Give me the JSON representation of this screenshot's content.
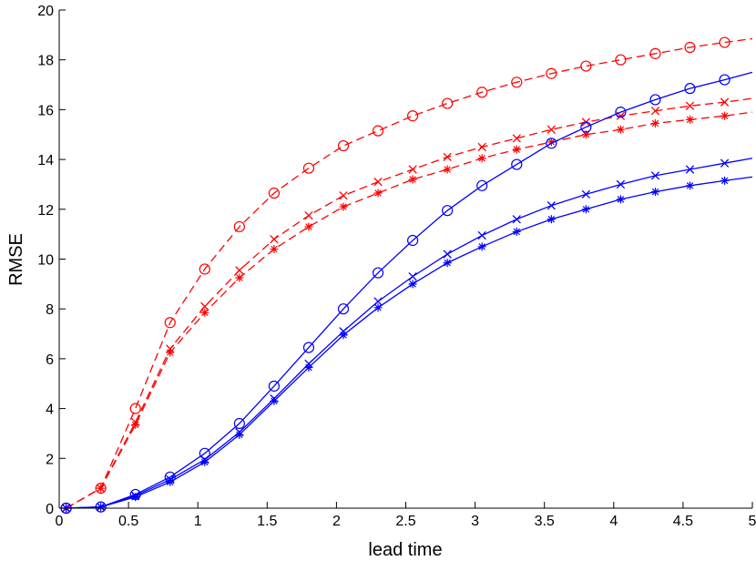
{
  "chart_data": {
    "type": "line",
    "xlabel": "lead time",
    "ylabel": "RMSE",
    "xlim": [
      0,
      5
    ],
    "ylim": [
      0,
      20
    ],
    "xticks": [
      0,
      0.5,
      1,
      1.5,
      2,
      2.5,
      3,
      3.5,
      4,
      4.5,
      5
    ],
    "yticks": [
      0,
      2,
      4,
      6,
      8,
      10,
      12,
      14,
      16,
      18,
      20
    ],
    "grid": false,
    "legend": "none",
    "colors": {
      "red": "#ff0000",
      "blue": "#0000ff"
    },
    "series": [
      {
        "color": "#ff0000",
        "line": "dashed",
        "marker": "circle",
        "x": [
          0.05,
          0.3,
          0.55,
          0.8,
          1.05,
          1.3,
          1.55,
          1.8,
          2.05,
          2.3,
          2.55,
          2.8,
          3.05,
          3.3,
          3.55,
          3.8,
          4.05,
          4.3,
          4.55,
          4.8,
          5.0
        ],
        "values": [
          0,
          0.8,
          4.0,
          7.45,
          9.6,
          11.3,
          12.65,
          13.65,
          14.55,
          15.15,
          15.75,
          16.25,
          16.7,
          17.1,
          17.45,
          17.75,
          18.0,
          18.25,
          18.5,
          18.7,
          18.85
        ],
        "marker_x": [
          0.05,
          0.3,
          0.55,
          0.8,
          1.05,
          1.3,
          1.55,
          1.8,
          2.05,
          2.3,
          2.55,
          2.8,
          3.05,
          3.3,
          3.55,
          3.8,
          4.05,
          4.3,
          4.55,
          4.8
        ]
      },
      {
        "color": "#ff0000",
        "line": "dashed",
        "marker": "x",
        "x": [
          0.05,
          0.3,
          0.55,
          0.8,
          1.05,
          1.3,
          1.55,
          1.8,
          2.05,
          2.3,
          2.55,
          2.8,
          3.05,
          3.3,
          3.55,
          3.8,
          4.05,
          4.3,
          4.55,
          4.8,
          5.0
        ],
        "values": [
          0,
          0.8,
          3.45,
          6.4,
          8.1,
          9.55,
          10.8,
          11.75,
          12.55,
          13.1,
          13.6,
          14.1,
          14.5,
          14.85,
          15.2,
          15.5,
          15.75,
          15.95,
          16.15,
          16.3,
          16.45
        ],
        "marker_x": [
          0.05,
          0.3,
          0.55,
          0.8,
          1.05,
          1.3,
          1.55,
          1.8,
          2.05,
          2.3,
          2.55,
          2.8,
          3.05,
          3.3,
          3.55,
          3.8,
          4.05,
          4.3,
          4.55,
          4.8
        ]
      },
      {
        "color": "#ff0000",
        "line": "dashed",
        "marker": "star",
        "x": [
          0.05,
          0.3,
          0.55,
          0.8,
          1.05,
          1.3,
          1.55,
          1.8,
          2.05,
          2.3,
          2.55,
          2.8,
          3.05,
          3.3,
          3.55,
          3.8,
          4.05,
          4.3,
          4.55,
          4.8,
          5.0
        ],
        "values": [
          0,
          0.8,
          3.35,
          6.25,
          7.85,
          9.25,
          10.4,
          11.3,
          12.1,
          12.65,
          13.2,
          13.6,
          14.05,
          14.4,
          14.7,
          15.0,
          15.2,
          15.45,
          15.6,
          15.75,
          15.9
        ],
        "marker_x": [
          0.05,
          0.3,
          0.55,
          0.8,
          1.05,
          1.3,
          1.55,
          1.8,
          2.05,
          2.3,
          2.55,
          2.8,
          3.05,
          3.3,
          3.55,
          3.8,
          4.05,
          4.3,
          4.55,
          4.8
        ]
      },
      {
        "color": "#0000ff",
        "line": "solid",
        "marker": "circle",
        "x": [
          0.05,
          0.3,
          0.55,
          0.8,
          1.05,
          1.3,
          1.55,
          1.8,
          2.05,
          2.3,
          2.55,
          2.8,
          3.05,
          3.3,
          3.55,
          3.8,
          4.05,
          4.3,
          4.55,
          4.8,
          5.0
        ],
        "values": [
          0,
          0.05,
          0.55,
          1.25,
          2.2,
          3.4,
          4.9,
          6.45,
          8.0,
          9.45,
          10.75,
          11.95,
          12.95,
          13.8,
          14.65,
          15.3,
          15.9,
          16.4,
          16.85,
          17.2,
          17.5
        ],
        "marker_x": [
          0.05,
          0.3,
          0.55,
          0.8,
          1.05,
          1.3,
          1.55,
          1.8,
          2.05,
          2.3,
          2.55,
          2.8,
          3.05,
          3.3,
          3.55,
          3.8,
          4.05,
          4.3,
          4.55,
          4.8
        ]
      },
      {
        "color": "#0000ff",
        "line": "solid",
        "marker": "x",
        "x": [
          0.05,
          0.3,
          0.55,
          0.8,
          1.05,
          1.3,
          1.55,
          1.8,
          2.05,
          2.3,
          2.55,
          2.8,
          3.05,
          3.3,
          3.55,
          3.8,
          4.05,
          4.3,
          4.55,
          4.8,
          5.0
        ],
        "values": [
          0,
          0.05,
          0.5,
          1.15,
          1.95,
          3.05,
          4.4,
          5.8,
          7.1,
          8.3,
          9.3,
          10.2,
          10.95,
          11.6,
          12.15,
          12.6,
          13.0,
          13.35,
          13.6,
          13.85,
          14.05
        ],
        "marker_x": [
          0.05,
          0.3,
          0.55,
          0.8,
          1.05,
          1.3,
          1.55,
          1.8,
          2.05,
          2.3,
          2.55,
          2.8,
          3.05,
          3.3,
          3.55,
          3.8,
          4.05,
          4.3,
          4.55,
          4.8
        ]
      },
      {
        "color": "#0000ff",
        "line": "solid",
        "marker": "star",
        "x": [
          0.05,
          0.3,
          0.55,
          0.8,
          1.05,
          1.3,
          1.55,
          1.8,
          2.05,
          2.3,
          2.55,
          2.8,
          3.05,
          3.3,
          3.55,
          3.8,
          4.05,
          4.3,
          4.55,
          4.8,
          5.0
        ],
        "values": [
          0,
          0.05,
          0.45,
          1.05,
          1.85,
          2.95,
          4.3,
          5.65,
          6.95,
          8.05,
          9.0,
          9.85,
          10.5,
          11.1,
          11.6,
          12.0,
          12.4,
          12.7,
          12.95,
          13.15,
          13.3
        ],
        "marker_x": [
          0.05,
          0.3,
          0.55,
          0.8,
          1.05,
          1.3,
          1.55,
          1.8,
          2.05,
          2.3,
          2.55,
          2.8,
          3.05,
          3.3,
          3.55,
          3.8,
          4.05,
          4.3,
          4.55,
          4.8
        ]
      }
    ]
  }
}
